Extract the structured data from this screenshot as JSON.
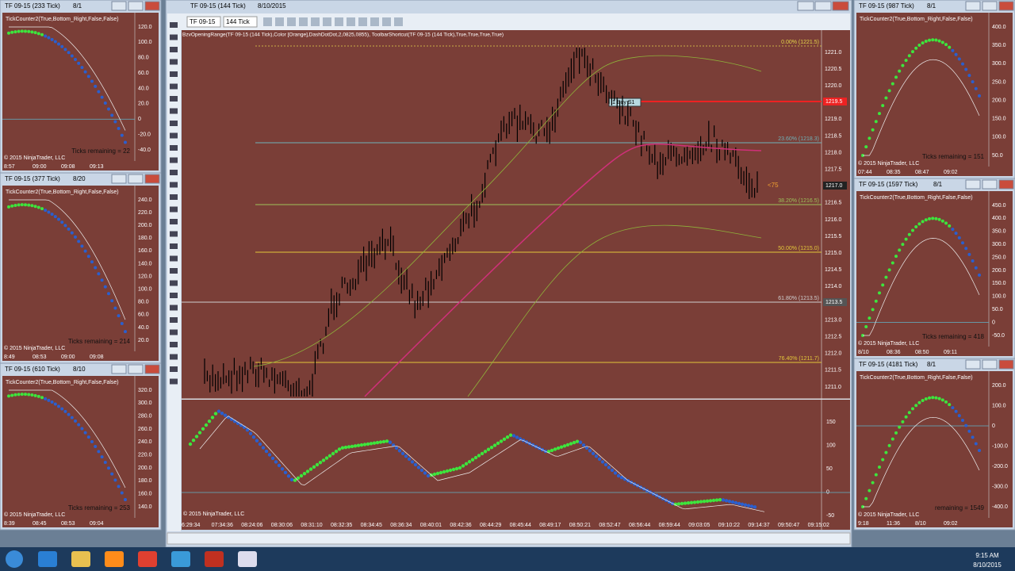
{
  "windows": [
    {
      "title": "TF 09-15 (233 Tick)",
      "title_date": "8/1",
      "indicator": "TickCounter2(True,Bottom_Right,False,False)",
      "yticks": [
        "120.0",
        "100.0",
        "80.0",
        "60.0",
        "40.0",
        "20.0",
        "0",
        "-20.0",
        "-40.0"
      ],
      "xticks": [
        "8:57",
        "09:00",
        "09:08",
        "09:13"
      ],
      "copyright": "© 2015 NinjaTrader, LLC",
      "ticks_remaining": "Ticks remaining = 22"
    },
    {
      "title": "TF 09-15 (377 Tick)",
      "title_date": "8/20",
      "indicator": "TickCounter2(True,Bottom_Right,False,False)",
      "yticks": [
        "240.0",
        "220.0",
        "200.0",
        "180.0",
        "160.0",
        "140.0",
        "120.0",
        "100.0",
        "80.0",
        "60.0",
        "40.0",
        "20.0"
      ],
      "xticks": [
        "8:49",
        "08:53",
        "09:00",
        "09:08"
      ],
      "copyright": "© 2015 NinjaTrader, LLC",
      "ticks_remaining": "Ticks remaining = 214"
    },
    {
      "title": "TF 09-15 (610 Tick)",
      "title_date": "8/10",
      "indicator": "TickCounter2(True,Bottom_Right,False,False)",
      "yticks": [
        "320.0",
        "300.0",
        "280.0",
        "260.0",
        "240.0",
        "220.0",
        "200.0",
        "180.0",
        "160.0",
        "140.0"
      ],
      "xticks": [
        "8:39",
        "08:45",
        "08:53",
        "09:04"
      ],
      "copyright": "© 2015 NinjaTrader, LLC",
      "ticks_remaining": "Ticks remaining = 253"
    },
    {
      "title": "TF 09-15 (987 Tick)",
      "title_date": "8/1",
      "indicator": "TickCounter2(True,Bottom_Right,False,False)",
      "yticks": [
        "400.0",
        "350.0",
        "300.0",
        "250.0",
        "200.0",
        "150.0",
        "100.0",
        "50.0"
      ],
      "xticks": [
        "07:44",
        "08:35",
        "08:47",
        "09:02"
      ],
      "copyright": "© 2015 NinjaTrader, LLC",
      "ticks_remaining": "Ticks remaining = 151"
    },
    {
      "title": "TF 09-15 (1597 Tick)",
      "title_date": "8/1",
      "indicator": "TickCounter2(True,Bottom_Right,False,False)",
      "yticks": [
        "450.0",
        "400.0",
        "350.0",
        "300.0",
        "250.0",
        "200.0",
        "150.0",
        "100.0",
        "50.0",
        "0",
        "-50.0"
      ],
      "xticks": [
        "8/10",
        "08:36",
        "08:50",
        "09:11"
      ],
      "copyright": "© 2015 NinjaTrader, LLC",
      "ticks_remaining": "Ticks remaining = 418"
    },
    {
      "title": "TF 09-15 (4181 Tick)",
      "title_date": "8/1",
      "indicator": "TickCounter2(True,Bottom_Right,False,False)",
      "yticks": [
        "200.0",
        "100.0",
        "0",
        "-100.0",
        "-200.0",
        "-300.0",
        "-400.0"
      ],
      "xticks": [
        "9:18",
        "11:36",
        "8/10",
        "09:02"
      ],
      "copyright": "© 2015 NinjaTrader, LLC",
      "ticks_remaining": "remaining = 1549"
    }
  ],
  "main": {
    "title": "TF 09-15 (144 Tick)",
    "title_date": "8/10/2015",
    "instrument": "TF 09-15",
    "interval": "144 Tick",
    "indicator": "BzvOpeningRange(TF 09-15 (144 Tick),Color [Orange],DashDotDot,2,0825,0855), ToolbarShortcut(TF 09-15 (144 Tick),True,True,True,True)",
    "price_ticks": [
      "1221.0",
      "1220.5",
      "1220.0",
      "1219.5",
      "1219.0",
      "1218.5",
      "1218.0",
      "1217.5",
      "1217.0",
      "1216.5",
      "1216.0",
      "1215.5",
      "1215.0",
      "1214.5",
      "1214.0",
      "1213.5",
      "1213.0",
      "1212.5",
      "1212.0",
      "1211.5",
      "1211.0"
    ],
    "fib_labels": [
      "0.00% (1221.5)",
      "23.60% (1218.3)",
      "38.20% (1216.5)",
      "50.00% (1215.0)",
      "61.80% (1213.5)",
      "76.40% (1211.7)"
    ],
    "order_label": "1  Buy S1",
    "order_price": "1219.5",
    "last_price": "1217.0",
    "crosshair_price": "1213.5",
    "signal": "<75",
    "osc_ticks": [
      "150",
      "100",
      "50",
      "0",
      "-50"
    ],
    "time_labels": [
      "6:29:34",
      "07:34:36",
      "08:24:06",
      "08:30:06",
      "08:31:10",
      "08:32:35",
      "08:34:45",
      "08:36:34",
      "08:40:01",
      "08:42:36",
      "08:44:29",
      "08:45:44",
      "08:49:17",
      "08:50:21",
      "08:52:47",
      "08:56:44",
      "08:59:44",
      "09:03:05",
      "09:10:22",
      "09:14:37",
      "09:50:47",
      "09:15:02"
    ],
    "copyright": "© 2015 NinjaTrader, LLC"
  },
  "taskbar": {
    "time": "9:15 AM",
    "date": "8/10/2015"
  }
}
